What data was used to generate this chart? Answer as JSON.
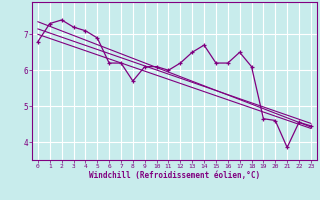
{
  "title": "",
  "xlabel": "Windchill (Refroidissement éolien,°C)",
  "ylabel": "",
  "bg_color": "#c8ecec",
  "line_color": "#800080",
  "grid_color": "#ffffff",
  "x_values": [
    0,
    1,
    2,
    3,
    4,
    5,
    6,
    7,
    8,
    9,
    10,
    11,
    12,
    13,
    14,
    15,
    16,
    17,
    18,
    19,
    20,
    21,
    22,
    23
  ],
  "y_data": [
    6.8,
    7.3,
    7.4,
    7.2,
    7.1,
    6.9,
    6.2,
    6.2,
    5.7,
    6.1,
    6.1,
    6.0,
    6.2,
    6.5,
    6.7,
    6.2,
    6.2,
    6.5,
    6.1,
    4.65,
    4.6,
    3.85,
    4.55,
    4.45
  ],
  "ylim": [
    3.5,
    7.9
  ],
  "xlim": [
    -0.5,
    23.5
  ],
  "yticks": [
    4,
    5,
    6,
    7
  ],
  "xticks": [
    0,
    1,
    2,
    3,
    4,
    5,
    6,
    7,
    8,
    9,
    10,
    11,
    12,
    13,
    14,
    15,
    16,
    17,
    18,
    19,
    20,
    21,
    22,
    23
  ],
  "trend1_x": [
    0,
    23
  ],
  "trend1_y": [
    7.35,
    4.42
  ],
  "trend2_x": [
    0,
    23
  ],
  "trend2_y": [
    7.15,
    4.52
  ],
  "trend3_x": [
    0,
    23
  ],
  "trend3_y": [
    7.0,
    4.38
  ]
}
